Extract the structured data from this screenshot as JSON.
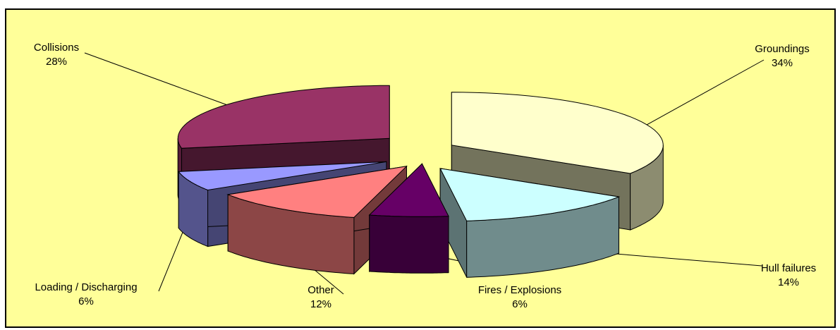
{
  "chart_data": {
    "type": "pie",
    "style": "3d-exploded",
    "legend": "none",
    "background_color": "#ffff99",
    "slices": [
      {
        "name": "Groundings",
        "value": 34,
        "label": "34%",
        "color": "#ffffcc"
      },
      {
        "name": "Hull failures",
        "value": 14,
        "label": "14%",
        "color": "#ccffff"
      },
      {
        "name": "Fires / Explosions",
        "value": 6,
        "label": "6%",
        "color": "#660066"
      },
      {
        "name": "Other",
        "value": 12,
        "label": "12%",
        "color": "#ff8080"
      },
      {
        "name": "Loading / Discharging",
        "value": 6,
        "label": "6%",
        "color": "#9999ff"
      },
      {
        "name": "Collisions",
        "value": 28,
        "label": "28%",
        "color": "#993366"
      }
    ]
  }
}
